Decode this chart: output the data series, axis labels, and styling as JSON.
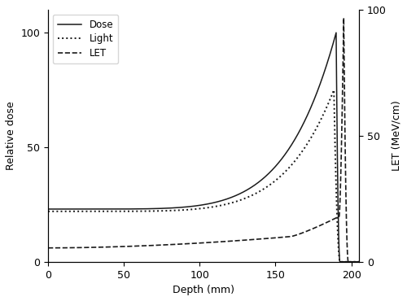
{
  "xlabel": "Depth (mm)",
  "ylabel_left": "Relative dose",
  "ylabel_right": "LET (MeV/cm)",
  "xlim": [
    0,
    205
  ],
  "ylim_left": [
    0,
    110
  ],
  "ylim_right": [
    0,
    100
  ],
  "xticks": [
    0,
    50,
    100,
    150,
    200
  ],
  "yticks_left": [
    0,
    50,
    100
  ],
  "yticks_right": [
    0,
    50,
    100
  ],
  "legend_labels": [
    "Dose",
    "Light",
    "LET"
  ],
  "bg_color": "#ffffff",
  "line_color": "#1a1a1a",
  "peak_x": 190.0,
  "dose_plateau": 23.0,
  "dose_peak": 100.0,
  "light_plateau": 22.0,
  "light_peak": 75.0,
  "let_start": 5.5,
  "let_peak": 97.0,
  "let_peak_x": 195.0
}
